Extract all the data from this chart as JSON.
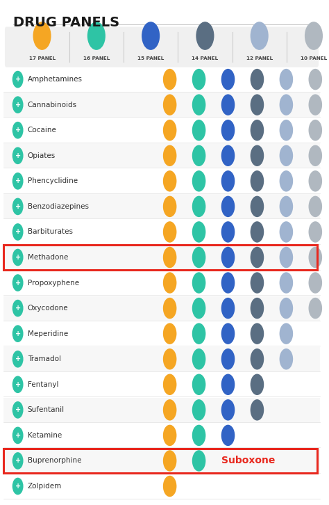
{
  "title": "DRUG PANELS",
  "bg_color": "#ffffff",
  "panel_legend_bg": "#f0f0f0",
  "panel_colors": [
    "#f5a623",
    "#2ec4a5",
    "#3163c5",
    "#5a6e82",
    "#a0b4d0",
    "#b0b8c0"
  ],
  "panel_labels": [
    "17 PANEL",
    "16 PANEL",
    "15 PANEL",
    "14 PANEL",
    "12 PANEL",
    "10 PANEL"
  ],
  "icon_color": "#2ec4a5",
  "drugs": [
    {
      "name": "Amphetamines",
      "dots": [
        1,
        1,
        1,
        1,
        1,
        1
      ],
      "highlight": false,
      "suboxone": false
    },
    {
      "name": "Cannabinoids",
      "dots": [
        1,
        1,
        1,
        1,
        1,
        1
      ],
      "highlight": false,
      "suboxone": false
    },
    {
      "name": "Cocaine",
      "dots": [
        1,
        1,
        1,
        1,
        1,
        1
      ],
      "highlight": false,
      "suboxone": false
    },
    {
      "name": "Opiates",
      "dots": [
        1,
        1,
        1,
        1,
        1,
        1
      ],
      "highlight": false,
      "suboxone": false
    },
    {
      "name": "Phencyclidine",
      "dots": [
        1,
        1,
        1,
        1,
        1,
        1
      ],
      "highlight": false,
      "suboxone": false
    },
    {
      "name": "Benzodiazepines",
      "dots": [
        1,
        1,
        1,
        1,
        1,
        1
      ],
      "highlight": false,
      "suboxone": false
    },
    {
      "name": "Barbiturates",
      "dots": [
        1,
        1,
        1,
        1,
        1,
        1
      ],
      "highlight": false,
      "suboxone": false
    },
    {
      "name": "Methadone",
      "dots": [
        1,
        1,
        1,
        1,
        1,
        1
      ],
      "highlight": true,
      "suboxone": false
    },
    {
      "name": "Propoxyphene",
      "dots": [
        1,
        1,
        1,
        1,
        1,
        1
      ],
      "highlight": false,
      "suboxone": false
    },
    {
      "name": "Oxycodone",
      "dots": [
        1,
        1,
        1,
        1,
        1,
        1
      ],
      "highlight": false,
      "suboxone": false
    },
    {
      "name": "Meperidine",
      "dots": [
        1,
        1,
        1,
        1,
        1,
        0
      ],
      "highlight": false,
      "suboxone": false
    },
    {
      "name": "Tramadol",
      "dots": [
        1,
        1,
        1,
        1,
        1,
        0
      ],
      "highlight": false,
      "suboxone": false
    },
    {
      "name": "Fentanyl",
      "dots": [
        1,
        1,
        1,
        1,
        0,
        0
      ],
      "highlight": false,
      "suboxone": false
    },
    {
      "name": "Sufentanil",
      "dots": [
        1,
        1,
        1,
        1,
        0,
        0
      ],
      "highlight": false,
      "suboxone": false
    },
    {
      "name": "Ketamine",
      "dots": [
        1,
        1,
        1,
        0,
        0,
        0
      ],
      "highlight": false,
      "suboxone": false
    },
    {
      "name": "Buprenorphine",
      "dots": [
        1,
        1,
        0,
        0,
        0,
        0
      ],
      "highlight": true,
      "suboxone": true
    },
    {
      "name": "Zolpidem",
      "dots": [
        1,
        0,
        0,
        0,
        0,
        0
      ],
      "highlight": false,
      "suboxone": false
    }
  ],
  "suboxone_color": "#e8281e",
  "highlight_border_color": "#e8281e",
  "row_alt_color": "#f7f7f7",
  "text_color": "#333333"
}
